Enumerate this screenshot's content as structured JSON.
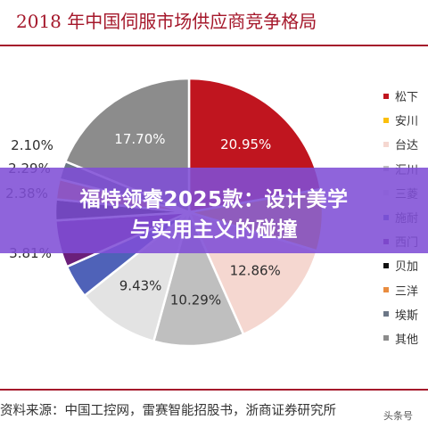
{
  "chart_data": {
    "type": "pie",
    "title": "2018 年中国伺服市场供应商竞争格局",
    "categories": [
      "松下",
      "安川",
      "台达",
      "汇川",
      "三菱",
      "施耐",
      "西门",
      "贝加",
      "三洋",
      "埃斯",
      "其他"
    ],
    "values": [
      20.95,
      7.0,
      12.86,
      10.29,
      9.43,
      3.81,
      5.37,
      2.38,
      2.29,
      2.1,
      17.7
    ],
    "data_labels": [
      "20.95%",
      "",
      "12.86%",
      "10.29%",
      "9.43%",
      "3.81%",
      "",
      "2.38%",
      "2.29%",
      "2.10%",
      "17.70%"
    ],
    "colors": [
      "#c0151f",
      "#fbbf0c",
      "#f5d7d0",
      "#bfbfbf",
      "#e3e3e3",
      "#4f62b8",
      "#6b1f7a",
      "#111111",
      "#e98c3f",
      "#6c7786",
      "#8c8c8c"
    ],
    "legend_position": "right"
  },
  "source": "资料来源：中国工控网，雷赛智能招股书，浙商证券研究所",
  "overlay": {
    "line1": "福特领睿2025款：设计美学",
    "line2": "与实用主义的碰撞",
    "color": "#804ed6"
  },
  "watermark": "头条号"
}
